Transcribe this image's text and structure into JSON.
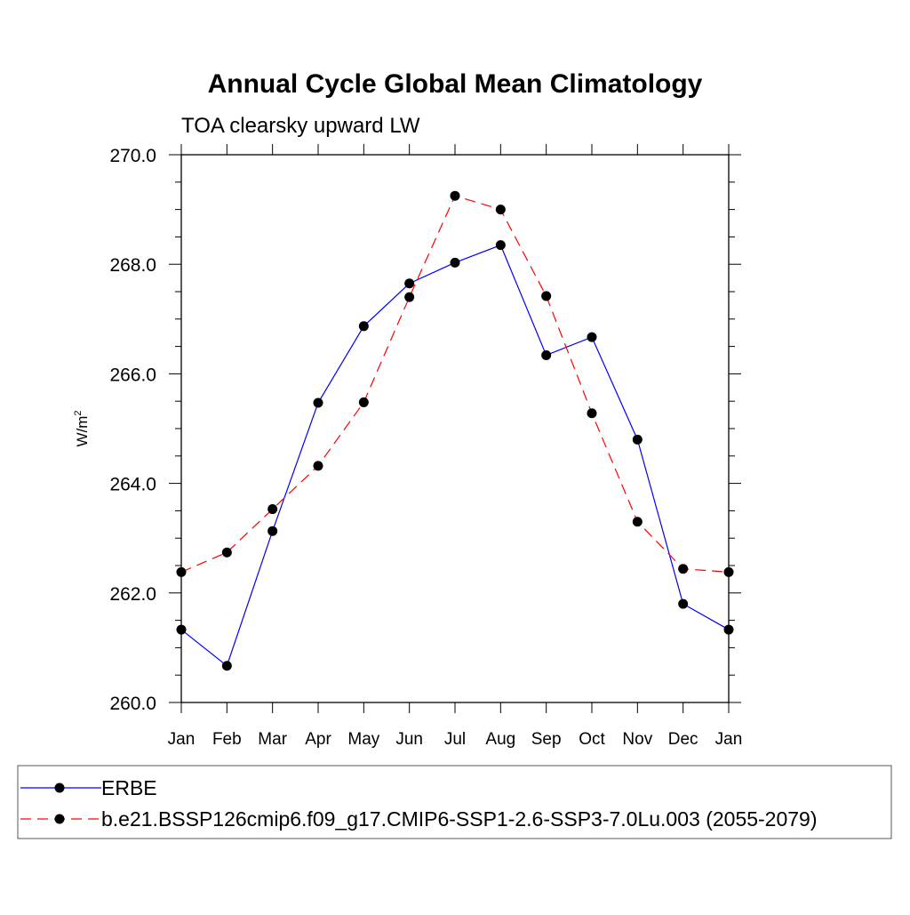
{
  "chart_data": {
    "type": "line",
    "title": "Annual Cycle Global Mean Climatology",
    "subtitle": "TOA clearsky upward LW",
    "ylabel": "W/m",
    "ylabel_sup": "2",
    "xlabel": "",
    "categories": [
      "Jan",
      "Feb",
      "Mar",
      "Apr",
      "May",
      "Jun",
      "Jul",
      "Aug",
      "Sep",
      "Oct",
      "Nov",
      "Dec",
      "Jan"
    ],
    "ylim": [
      260.0,
      270.0
    ],
    "yticks": [
      "260.0",
      "262.0",
      "264.0",
      "266.0",
      "268.0",
      "270.0"
    ],
    "grid": false,
    "legend_position": "bottom",
    "series": [
      {
        "name": "ERBE",
        "color": "#0000ff",
        "dash": "solid",
        "values": [
          261.33,
          260.67,
          263.13,
          265.47,
          266.87,
          267.65,
          268.03,
          268.35,
          266.34,
          266.67,
          264.8,
          261.8,
          261.33
        ]
      },
      {
        "name": "b.e21.BSSP126cmip6.f09_g17.CMIP6-SSP1-2.6-SSP3-7.0Lu.003 (2055-2079)",
        "color": "#ff0000",
        "dash": "dashed",
        "values": [
          262.38,
          262.74,
          263.53,
          264.32,
          265.48,
          267.4,
          269.25,
          269.0,
          267.42,
          265.28,
          263.3,
          262.44,
          262.38
        ]
      }
    ]
  }
}
